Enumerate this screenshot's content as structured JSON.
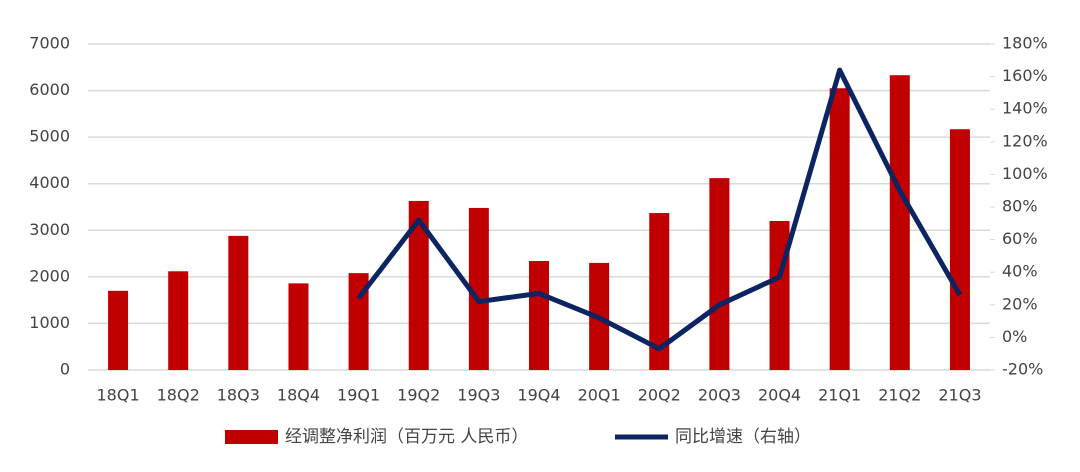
{
  "chart_data": {
    "type": "bar_line",
    "categories": [
      "18Q1",
      "18Q2",
      "18Q3",
      "18Q4",
      "19Q1",
      "19Q2",
      "19Q3",
      "19Q4",
      "20Q1",
      "20Q2",
      "20Q3",
      "20Q4",
      "21Q1",
      "21Q2",
      "21Q3"
    ],
    "series": [
      {
        "name": "经调整净利润（百万元 人民币）",
        "type": "bar",
        "color": "#c00000",
        "values": [
          1700,
          2120,
          2880,
          1860,
          2080,
          3630,
          3480,
          2340,
          2300,
          3370,
          4120,
          3200,
          6050,
          6330,
          5170
        ]
      },
      {
        "name": "同比增速（右轴）",
        "type": "line",
        "axis": "y2",
        "color": "#0c2461",
        "values": [
          null,
          null,
          null,
          null,
          24,
          72,
          22,
          27,
          12,
          -7,
          20,
          37,
          164,
          90,
          26
        ]
      }
    ],
    "ylim": [
      0,
      7000
    ],
    "yticks": [
      0,
      1000,
      2000,
      3000,
      4000,
      5000,
      6000,
      7000
    ],
    "y2lim": [
      -20,
      180
    ],
    "y2ticks": [
      {
        "value": -20,
        "label": "-20%"
      },
      {
        "value": 0,
        "label": "0%"
      },
      {
        "value": 20,
        "label": "20%"
      },
      {
        "value": 40,
        "label": "40%"
      },
      {
        "value": 60,
        "label": "60%"
      },
      {
        "value": 80,
        "label": "80%"
      },
      {
        "value": 100,
        "label": "100%"
      },
      {
        "value": 120,
        "label": "120%"
      },
      {
        "value": 140,
        "label": "140%"
      },
      {
        "value": 160,
        "label": "160%"
      },
      {
        "value": 180,
        "label": "180%"
      }
    ],
    "grid": true,
    "legend": "bottom"
  }
}
